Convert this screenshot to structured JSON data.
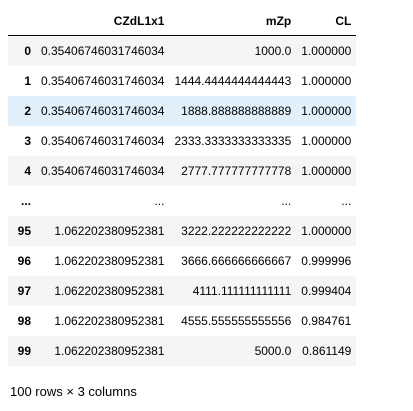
{
  "dataframe": {
    "columns": [
      "CZdL1x1",
      "mZp",
      "CL"
    ],
    "rows": [
      {
        "index": "0",
        "values": [
          "0.35406746031746034",
          "1000.0",
          "1.000000"
        ]
      },
      {
        "index": "1",
        "values": [
          "0.35406746031746034",
          "1444.4444444444443",
          "1.000000"
        ]
      },
      {
        "index": "2",
        "values": [
          "0.35406746031746034",
          "1888.888888888889",
          "1.000000"
        ],
        "highlighted": true
      },
      {
        "index": "3",
        "values": [
          "0.35406746031746034",
          "2333.3333333333335",
          "1.000000"
        ]
      },
      {
        "index": "4",
        "values": [
          "0.35406746031746034",
          "2777.777777777778",
          "1.000000"
        ]
      },
      {
        "index": "...",
        "values": [
          "...",
          "...",
          "..."
        ]
      },
      {
        "index": "95",
        "values": [
          "1.062202380952381",
          "3222.222222222222",
          "1.000000"
        ]
      },
      {
        "index": "96",
        "values": [
          "1.062202380952381",
          "3666.666666666667",
          "0.999996"
        ]
      },
      {
        "index": "97",
        "values": [
          "1.062202380952381",
          "4111.111111111111",
          "0.999404"
        ]
      },
      {
        "index": "98",
        "values": [
          "1.062202380952381",
          "4555.555555555556",
          "0.984761"
        ]
      },
      {
        "index": "99",
        "values": [
          "1.062202380952381",
          "5000.0",
          "0.861149"
        ]
      }
    ],
    "shape_text": "100 rows × 3 columns"
  },
  "colors": {
    "row_stripe": "#f5f5f5",
    "row_hover": "#e1f0fb",
    "header_border": "#000000"
  }
}
